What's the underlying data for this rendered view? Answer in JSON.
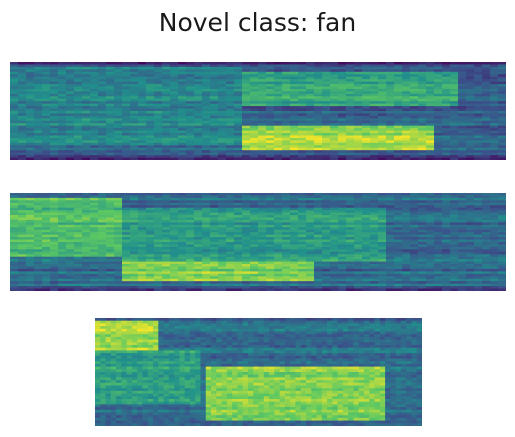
{
  "figure": {
    "title": "Novel class: fan",
    "colormap": "viridis",
    "colors": {
      "low": "#440154",
      "mid_low": "#3b528b",
      "mid": "#21918c",
      "mid_high": "#5ec962",
      "high": "#fde725",
      "background": "#ffffff"
    }
  },
  "spectrograms": [
    {
      "index": 1,
      "events": [
        {
          "start": 0.0,
          "end": 0.46,
          "f_low": 0.15,
          "f_high": 0.95,
          "level": 0.45
        },
        {
          "start": 0.47,
          "end": 0.86,
          "f_low": 0.1,
          "f_high": 0.35,
          "level": 0.85
        },
        {
          "start": 0.47,
          "end": 0.9,
          "f_low": 0.55,
          "f_high": 0.9,
          "level": 0.6
        }
      ],
      "base_level": 0.3
    },
    {
      "index": 2,
      "events": [
        {
          "start": 0.0,
          "end": 0.22,
          "f_low": 0.35,
          "f_high": 0.95,
          "level": 0.7
        },
        {
          "start": 0.22,
          "end": 0.62,
          "f_low": 0.1,
          "f_high": 0.3,
          "level": 0.8
        },
        {
          "start": 0.22,
          "end": 0.75,
          "f_low": 0.3,
          "f_high": 0.85,
          "level": 0.55
        }
      ],
      "base_level": 0.35
    },
    {
      "index": 3,
      "events": [
        {
          "start": 0.0,
          "end": 0.2,
          "f_low": 0.7,
          "f_high": 0.98,
          "level": 0.85
        },
        {
          "start": 0.0,
          "end": 0.33,
          "f_low": 0.2,
          "f_high": 0.7,
          "level": 0.55
        },
        {
          "start": 0.34,
          "end": 0.88,
          "f_low": 0.05,
          "f_high": 0.55,
          "level": 0.8
        }
      ],
      "base_level": 0.35
    }
  ]
}
